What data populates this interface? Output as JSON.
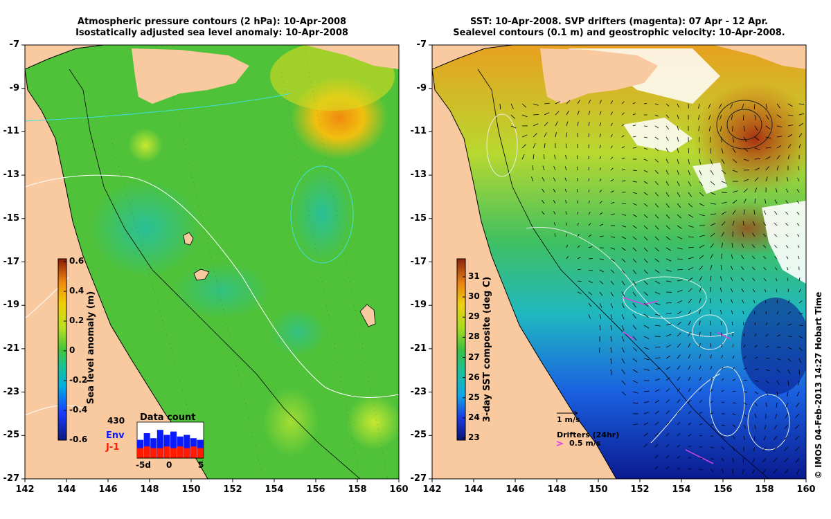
{
  "left_panel": {
    "title_line1": "Atmospheric pressure contours (2 hPa): 10-Apr-2008",
    "title_line2": "Isostatically adjusted sea level anomaly: 10-Apr-2008",
    "colorbar_label": "Sea level anomaly (m)",
    "colorbar_ticks": [
      "0.6",
      "0.4",
      "0.2",
      "0",
      "-0.2",
      "-0.4",
      "-0.6"
    ],
    "inset": {
      "title": "Data count",
      "max_label": "430",
      "env_label": "Env",
      "j1_label": "J-1",
      "xticks": [
        "-5d",
        "0",
        "5"
      ],
      "env_values": [
        0.55,
        0.75,
        0.6,
        0.85,
        0.7,
        0.8,
        0.65,
        0.7,
        0.6,
        0.55
      ],
      "j1_values": [
        0.3,
        0.35,
        0.3,
        0.3,
        0.35,
        0.3,
        0.35,
        0.3,
        0.35,
        0.3
      ]
    },
    "colors": {
      "land": "#f9c9a0",
      "ocean": "#4fc23a",
      "env": "#0a1aff",
      "j1": "#ff1a00"
    }
  },
  "right_panel": {
    "title_line1": "SST: 10-Apr-2008. SVP drifters (magenta): 07 Apr - 12 Apr.",
    "title_line2": "Sealevel contours (0.1 m) and geostrophic velocity: 10-Apr-2008.",
    "colorbar_label": "3-day SST composite (deg C)",
    "colorbar_ticks": [
      "31",
      "30",
      "29",
      "28",
      "27",
      "26",
      "25",
      "24",
      "23"
    ],
    "velocity_scale_label": "1 m/s",
    "drifters_label": "Drifters (24hr)",
    "drifters_scale_label": "0.5 m/s",
    "colors": {
      "land": "#f9c9a0",
      "drifter": "#e040e0"
    }
  },
  "axes": {
    "yticks": [
      "-7",
      "-9",
      "-11",
      "-13",
      "-15",
      "-17",
      "-19",
      "-21",
      "-23",
      "-25",
      "-27"
    ],
    "xticks": [
      "142",
      "144",
      "146",
      "148",
      "150",
      "152",
      "154",
      "156",
      "158",
      "160"
    ]
  },
  "credit": "© IMOS 04-Feb-2013 14:27 Hobart Time"
}
